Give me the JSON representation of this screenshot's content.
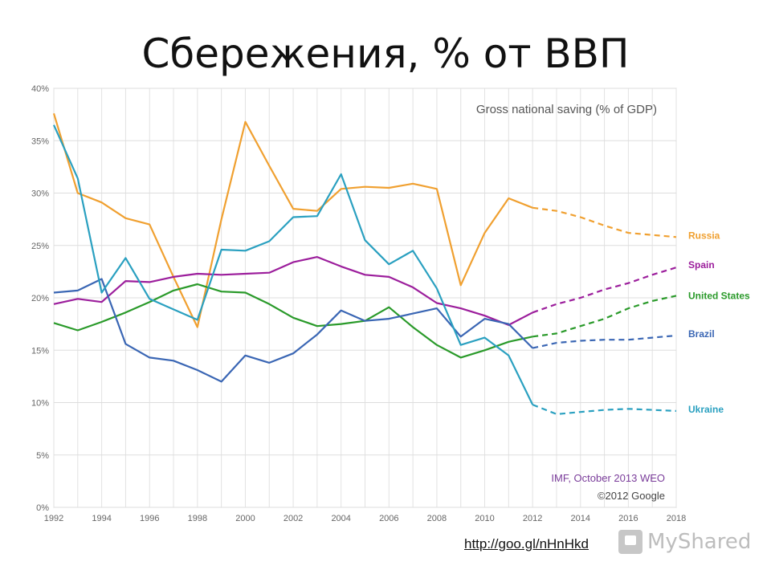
{
  "slide_title": "Сбережения, % от ВВП",
  "source_link": "http://goo.gl/nHnHkd",
  "watermark": "MyShared",
  "chart_data": {
    "type": "line",
    "title": "Gross national saving (% of GDP)",
    "credit_lines": [
      "IMF, October 2013 WEO",
      "©2012 Google"
    ],
    "x": [
      1992,
      1993,
      1994,
      1995,
      1996,
      1997,
      1998,
      1999,
      2000,
      2001,
      2002,
      2003,
      2004,
      2005,
      2006,
      2007,
      2008,
      2009,
      2010,
      2011,
      2012,
      2013,
      2014,
      2015,
      2016,
      2017,
      2018
    ],
    "projection_start": 2012,
    "xlim": [
      1992,
      2018
    ],
    "ylim": [
      0,
      40
    ],
    "x_ticks": [
      1992,
      1994,
      1996,
      1998,
      2000,
      2002,
      2004,
      2006,
      2008,
      2010,
      2012,
      2014,
      2016,
      2018
    ],
    "y_ticks": [
      "0%",
      "5%",
      "10%",
      "15%",
      "20%",
      "25%",
      "30%",
      "35%",
      "40%"
    ],
    "grid": true,
    "legend_placement": "right, labels at line ends",
    "series": [
      {
        "name": "Russia",
        "color": "#f0a030",
        "values": [
          37.6,
          30.0,
          29.1,
          27.6,
          27.0,
          22.0,
          17.2,
          27.5,
          36.8,
          32.6,
          28.5,
          28.3,
          30.4,
          30.6,
          30.5,
          30.9,
          30.4,
          21.2,
          26.2,
          29.5,
          28.6,
          28.3,
          27.7,
          26.9,
          26.2,
          26.0,
          25.8
        ]
      },
      {
        "name": "Spain",
        "color": "#9c1e9c",
        "values": [
          19.4,
          19.9,
          19.6,
          21.6,
          21.5,
          22.0,
          22.3,
          22.2,
          22.3,
          22.4,
          23.4,
          23.9,
          23.0,
          22.2,
          22.0,
          21.0,
          19.5,
          19.0,
          18.3,
          17.4,
          18.6,
          19.4,
          20.0,
          20.8,
          21.4,
          22.2,
          22.9
        ]
      },
      {
        "name": "United States",
        "color": "#2a9a2a",
        "values": [
          17.6,
          16.9,
          17.7,
          18.6,
          19.6,
          20.7,
          21.3,
          20.6,
          20.5,
          19.4,
          18.1,
          17.3,
          17.5,
          17.8,
          19.1,
          17.2,
          15.5,
          14.3,
          15.0,
          15.8,
          16.3,
          16.6,
          17.3,
          18.0,
          19.0,
          19.7,
          20.2
        ]
      },
      {
        "name": "Brazil",
        "color": "#3a66b4",
        "values": [
          20.5,
          20.7,
          21.8,
          15.6,
          14.3,
          14.0,
          13.1,
          12.0,
          14.5,
          13.8,
          14.7,
          16.5,
          18.8,
          17.8,
          18.0,
          18.5,
          19.0,
          16.3,
          18.0,
          17.5,
          15.2,
          15.7,
          15.9,
          16.0,
          16.0,
          16.2,
          16.4
        ]
      },
      {
        "name": "Ukraine",
        "color": "#2aa0c0",
        "values": [
          36.5,
          31.4,
          20.5,
          23.8,
          19.9,
          18.9,
          17.9,
          24.6,
          24.5,
          25.4,
          27.7,
          27.8,
          31.8,
          25.5,
          23.2,
          24.5,
          20.9,
          15.5,
          16.2,
          14.5,
          9.8,
          8.9,
          9.1,
          9.3,
          9.4,
          9.3,
          9.2
        ]
      }
    ]
  }
}
